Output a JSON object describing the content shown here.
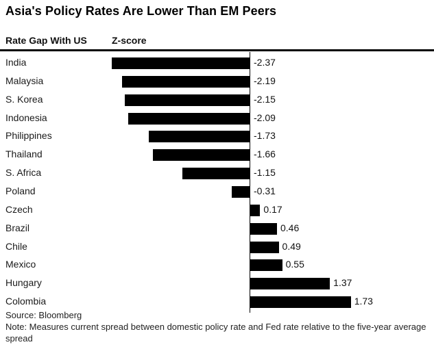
{
  "header": {
    "title": "Asia's Policy Rates Are Lower Than EM Peers",
    "columns": [
      {
        "label": "Rate Gap With US"
      },
      {
        "label": "Z-score"
      }
    ]
  },
  "chart_data": {
    "type": "bar",
    "orientation": "horizontal",
    "title": "Asia's Policy Rates Are Lower Than EM Peers",
    "categories": [
      "India",
      "Malaysia",
      "S. Korea",
      "Indonesia",
      "Philippines",
      "Thailand",
      "S. Africa",
      "Poland",
      "Czech",
      "Brazil",
      "Chile",
      "Mexico",
      "Hungary",
      "Colombia"
    ],
    "values": [
      -2.37,
      -2.19,
      -2.15,
      -2.09,
      -1.73,
      -1.66,
      -1.15,
      -0.31,
      0.17,
      0.46,
      0.49,
      0.55,
      1.37,
      1.73
    ],
    "value_labels": [
      "-2.37",
      "-2.19",
      "-2.15",
      "-2.09",
      "-1.73",
      "-1.66",
      "-1.15",
      "-0.31",
      "0.17",
      "0.46",
      "0.49",
      "0.55",
      "1.37",
      "1.73"
    ],
    "xlabel": "Z-score",
    "bar_color": "#000000",
    "zero_line": true,
    "gridlines": false,
    "value_axis_ticks": "none, values shown as data labels at bar ends",
    "legend_position": "column headers top-left"
  },
  "footer": {
    "source": "Source: Bloomberg",
    "note": "Note: Measures current spread between domestic policy rate and Fed rate relative to the five-year average spread"
  },
  "colors": {
    "background": "#ffffff",
    "bar": "#000000",
    "rule": "#000000",
    "title_text": "#000000",
    "label_text": "#1a1a1a"
  }
}
